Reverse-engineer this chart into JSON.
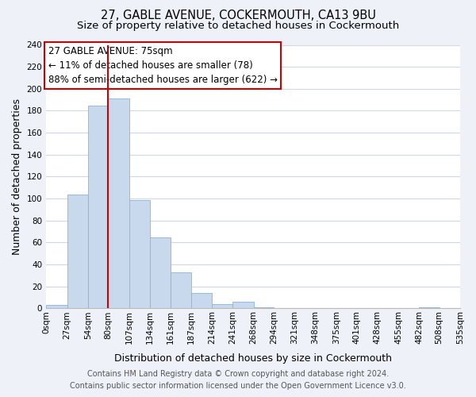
{
  "title": "27, GABLE AVENUE, COCKERMOUTH, CA13 9BU",
  "subtitle": "Size of property relative to detached houses in Cockermouth",
  "xlabel": "Distribution of detached houses by size in Cockermouth",
  "ylabel": "Number of detached properties",
  "bar_color": "#c8d9ee",
  "bar_edge_color": "#8ab4d8",
  "bin_edges": [
    0,
    27,
    54,
    80,
    107,
    134,
    161,
    187,
    214,
    241,
    268,
    294,
    321,
    348,
    375,
    401,
    428,
    455,
    482,
    508,
    535
  ],
  "bin_labels": [
    "0sqm",
    "27sqm",
    "54sqm",
    "80sqm",
    "107sqm",
    "134sqm",
    "161sqm",
    "187sqm",
    "214sqm",
    "241sqm",
    "268sqm",
    "294sqm",
    "321sqm",
    "348sqm",
    "375sqm",
    "401sqm",
    "428sqm",
    "455sqm",
    "482sqm",
    "508sqm",
    "535sqm"
  ],
  "counts": [
    3,
    104,
    185,
    191,
    99,
    65,
    33,
    14,
    4,
    6,
    1,
    0,
    0,
    0,
    0,
    0,
    0,
    0,
    1,
    0
  ],
  "ylim": [
    0,
    240
  ],
  "yticks": [
    0,
    20,
    40,
    60,
    80,
    100,
    120,
    140,
    160,
    180,
    200,
    220,
    240
  ],
  "property_line_x": 80,
  "annotation_title": "27 GABLE AVENUE: 75sqm",
  "annotation_line1": "← 11% of detached houses are smaller (78)",
  "annotation_line2": "88% of semi-detached houses are larger (622) →",
  "footer_line1": "Contains HM Land Registry data © Crown copyright and database right 2024.",
  "footer_line2": "Contains public sector information licensed under the Open Government Licence v3.0.",
  "background_color": "#eef2f8",
  "plot_bg_color": "#ffffff",
  "grid_color": "#d0d8e8",
  "red_line_color": "#cc0000",
  "title_fontsize": 10.5,
  "subtitle_fontsize": 9.5,
  "axis_label_fontsize": 9,
  "tick_fontsize": 7.5,
  "annotation_fontsize": 8.5,
  "footer_fontsize": 7
}
